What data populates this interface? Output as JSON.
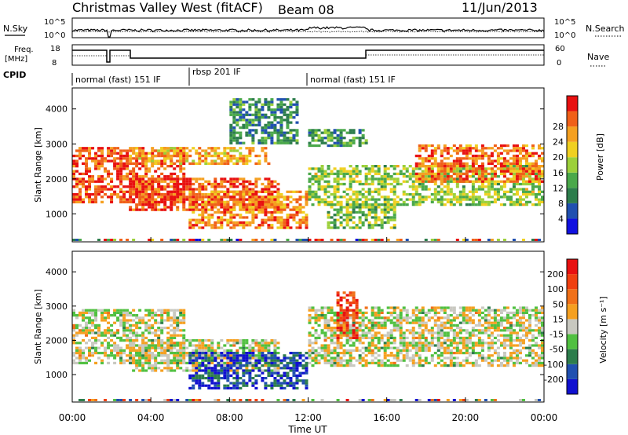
{
  "header": {
    "title": "Christmas Valley West (fitACF)",
    "beam": "Beam 08",
    "date": "11/Jun/2013"
  },
  "panels": {
    "nsky_label": "N.Sky",
    "nsearch_label": "N.Search",
    "freq_label_line1": "Freq.",
    "freq_label_line2": "[MHz]",
    "nave_label": "Nave",
    "cpid_label": "CPID",
    "nsky_ticks": [
      "10^5",
      "10^0"
    ],
    "nsearch_ticks": [
      "10^5",
      "10^0"
    ],
    "freq_ticks": [
      "18",
      "8"
    ],
    "nave_ticks": [
      "60",
      "0"
    ]
  },
  "cpid_segments": [
    {
      "label": "normal (fast) 151 IF",
      "start": 0.0,
      "end": 6.0
    },
    {
      "label": "rbsp 201 IF",
      "start": 6.0,
      "end": 12.0
    },
    {
      "label": "normal (fast) 151 IF",
      "start": 12.0,
      "end": 24.0
    }
  ],
  "chart_data": [
    {
      "type": "heatmap",
      "name": "power",
      "ylabel": "Slant Range [km]",
      "xlabel": "Time UT",
      "xlim": [
        0,
        24
      ],
      "ylim": [
        200,
        4600
      ],
      "xticks": [
        "00:00",
        "04:00",
        "08:00",
        "12:00",
        "16:00",
        "20:00",
        "00:00"
      ],
      "yticks": [
        "1000",
        "2000",
        "3000",
        "4000"
      ],
      "colorbar": {
        "label": "Power [dB]",
        "ticks": [
          "4",
          "8",
          "12",
          "16",
          "20",
          "24",
          "28"
        ],
        "colors": [
          "#1010e0",
          "#2050b0",
          "#2d7d4c",
          "#4aa84a",
          "#9cd03a",
          "#f0d020",
          "#f5a020",
          "#f06018",
          "#e81010"
        ]
      },
      "regions": [
        {
          "t0": 0.0,
          "t1": 5.8,
          "r0": 1300,
          "r1": 2900,
          "level": 0.85
        },
        {
          "t0": 2.9,
          "t1": 10.0,
          "r0": 2400,
          "r1": 2900,
          "level": 0.7
        },
        {
          "t0": 2.9,
          "t1": 10.5,
          "r0": 1100,
          "r1": 2000,
          "level": 0.9
        },
        {
          "t0": 5.9,
          "t1": 12.0,
          "r0": 600,
          "r1": 1700,
          "level": 0.75
        },
        {
          "t0": 8.0,
          "t1": 11.5,
          "r0": 3000,
          "r1": 4300,
          "level": 0.3
        },
        {
          "t0": 12.0,
          "t1": 24.0,
          "r0": 1200,
          "r1": 2400,
          "level": 0.5
        },
        {
          "t0": 17.5,
          "t1": 24.0,
          "r0": 1900,
          "r1": 3000,
          "level": 0.8
        },
        {
          "t0": 12.0,
          "t1": 15.0,
          "r0": 2900,
          "r1": 3400,
          "level": 0.35
        },
        {
          "t0": 13.0,
          "t1": 16.5,
          "r0": 600,
          "r1": 1300,
          "level": 0.45
        }
      ]
    },
    {
      "type": "heatmap",
      "name": "velocity",
      "ylabel": "Slant Range [km]",
      "xlabel": "Time UT",
      "xlim": [
        0,
        24
      ],
      "ylim": [
        200,
        4600
      ],
      "xticks": [
        "00:00",
        "04:00",
        "08:00",
        "12:00",
        "16:00",
        "20:00",
        "00:00"
      ],
      "yticks": [
        "1000",
        "2000",
        "3000",
        "4000"
      ],
      "colorbar": {
        "label": "Velocity [m s⁻¹]",
        "ticks": [
          "200",
          "100",
          "50",
          "15",
          "-15",
          "-50",
          "-100",
          "-200"
        ],
        "colors": [
          "#1010d0",
          "#2050b0",
          "#2d7d4c",
          "#50c040",
          "#c8c8c0",
          "#f5a020",
          "#f07018",
          "#f04010",
          "#e81010"
        ]
      },
      "regions": [
        {
          "t0": 0.0,
          "t1": 5.8,
          "r0": 1300,
          "r1": 2900,
          "level": 0.5
        },
        {
          "t0": 2.9,
          "t1": 10.5,
          "r0": 1100,
          "r1": 2000,
          "level": 0.5
        },
        {
          "t0": 5.9,
          "t1": 12.0,
          "r0": 600,
          "r1": 1700,
          "level": 0.15
        },
        {
          "t0": 12.0,
          "t1": 24.0,
          "r0": 1200,
          "r1": 3000,
          "level": 0.5
        },
        {
          "t0": 13.5,
          "t1": 14.5,
          "r0": 2000,
          "r1": 3400,
          "level": 0.85
        }
      ]
    }
  ]
}
